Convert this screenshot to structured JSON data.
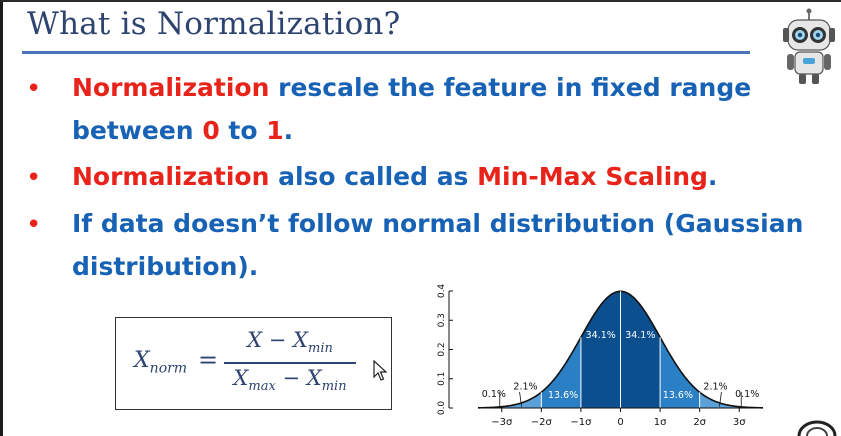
{
  "slide": {
    "title": "What is Normalization?",
    "bullets": [
      {
        "parts": [
          {
            "text": "Normalization",
            "color": "red"
          },
          {
            "text": " rescale the feature in fixed range",
            "color": "blue"
          }
        ]
      },
      {
        "parts": [
          {
            "text": "between ",
            "color": "blue"
          },
          {
            "text": "0",
            "color": "red"
          },
          {
            "text": " to ",
            "color": "blue"
          },
          {
            "text": "1",
            "color": "red"
          },
          {
            "text": ".",
            "color": "blue"
          }
        ]
      },
      {
        "parts": [
          {
            "text": "Normalization",
            "color": "red"
          },
          {
            "text": " also called as ",
            "color": "blue"
          },
          {
            "text": "Min-Max Scaling",
            "color": "red"
          },
          {
            "text": ".",
            "color": "blue"
          }
        ]
      },
      {
        "parts": [
          {
            "text": "If data doesn’t follow normal distribution (Gaussian",
            "color": "blue"
          }
        ]
      },
      {
        "parts": [
          {
            "text": "distribution).",
            "color": "blue"
          }
        ]
      }
    ],
    "bullet_symbol": "•",
    "formula": {
      "lhs_main": "X",
      "lhs_sub": "norm",
      "equals": "=",
      "num_main": "X − X",
      "num_sub": "min",
      "den_a": "X",
      "den_a_sub": "max",
      "den_mid": " − X",
      "den_b_sub": "min"
    },
    "colors": {
      "title": "#2e4470",
      "blue": "#1862b5",
      "red": "#e8231a",
      "rule": "#4a72b8"
    }
  },
  "chart_data": {
    "type": "area",
    "distribution": "standard normal",
    "y_ticks": [
      "0.0",
      "0.1",
      "0.2",
      "0.3",
      "0.4"
    ],
    "x_ticks": [
      "−3σ",
      "−2σ",
      "−1σ",
      "0",
      "1σ",
      "2σ",
      "3σ"
    ],
    "ylim": [
      0,
      0.4
    ],
    "xlim": [
      -3.6,
      3.6
    ],
    "bands": [
      {
        "from": -3,
        "to": -2,
        "percent": "2.1%",
        "color": "#5ba0d6"
      },
      {
        "from": -2,
        "to": -1,
        "percent": "13.6%",
        "color": "#2b7fc4"
      },
      {
        "from": -1,
        "to": 0,
        "percent": "34.1%",
        "color": "#0b4f8e"
      },
      {
        "from": 0,
        "to": 1,
        "percent": "34.1%",
        "color": "#0b4f8e"
      },
      {
        "from": 1,
        "to": 2,
        "percent": "13.6%",
        "color": "#2b7fc4"
      },
      {
        "from": 2,
        "to": 3,
        "percent": "2.1%",
        "color": "#5ba0d6"
      }
    ],
    "tail_labels": [
      "0.1%",
      "0.1%"
    ]
  }
}
